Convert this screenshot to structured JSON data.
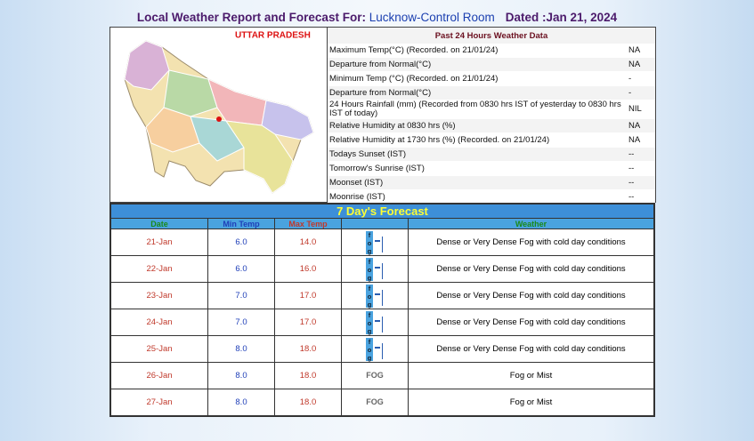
{
  "header": {
    "title": "Local Weather Report and Forecast For:",
    "location": "Lucknow-Control Room",
    "dated": "Dated :Jan 21, 2024"
  },
  "map": {
    "label": "UTTAR PRADESH"
  },
  "past_24h": {
    "title": "Past 24 Hours Weather Data",
    "rows": [
      [
        "Maximum Temp(°C) (Recorded. on 21/01/24)",
        "NA"
      ],
      [
        "Departure from Normal(°C)",
        "NA"
      ],
      [
        "Minimum Temp (°C) (Recorded. on 21/01/24)",
        "-"
      ],
      [
        "Departure from Normal(°C)",
        "-"
      ],
      [
        "24 Hours Rainfall (mm) (Recorded from 0830 hrs IST of yesterday to 0830 hrs IST of today)",
        "NIL"
      ],
      [
        "Relative Humidity at 0830 hrs (%)",
        "NA"
      ],
      [
        "Relative Humidity at 1730 hrs (%) (Recorded. on 21/01/24)",
        "NA"
      ],
      [
        "Todays Sunset (IST)",
        "--"
      ],
      [
        "Tomorrow's Sunrise (IST)",
        "--"
      ],
      [
        "Moonset (IST)",
        "--"
      ],
      [
        "Moonrise (IST)",
        "--"
      ]
    ]
  },
  "forecast": {
    "title": "7 Day's Forecast",
    "columns": [
      "Date",
      "Min Temp",
      "Max Temp",
      "Weather"
    ],
    "rows": [
      {
        "date": "21-Jan",
        "min": "6.0",
        "max": "14.0",
        "icon": "fog",
        "weather": "Dense or Very Dense Fog with cold day conditions"
      },
      {
        "date": "22-Jan",
        "min": "6.0",
        "max": "16.0",
        "icon": "fog",
        "weather": "Dense or Very Dense Fog with cold day conditions"
      },
      {
        "date": "23-Jan",
        "min": "7.0",
        "max": "17.0",
        "icon": "fog",
        "weather": "Dense or Very Dense Fog with cold day conditions"
      },
      {
        "date": "24-Jan",
        "min": "7.0",
        "max": "17.0",
        "icon": "fog",
        "weather": "Dense or Very Dense Fog with cold day conditions"
      },
      {
        "date": "25-Jan",
        "min": "8.0",
        "max": "18.0",
        "icon": "fog",
        "weather": "Dense or Very Dense Fog with cold day conditions"
      },
      {
        "date": "26-Jan",
        "min": "8.0",
        "max": "18.0",
        "icon": "FOG",
        "weather": "Fog or Mist"
      },
      {
        "date": "27-Jan",
        "min": "8.0",
        "max": "18.0",
        "icon": "FOG",
        "weather": "Fog or Mist"
      }
    ]
  }
}
